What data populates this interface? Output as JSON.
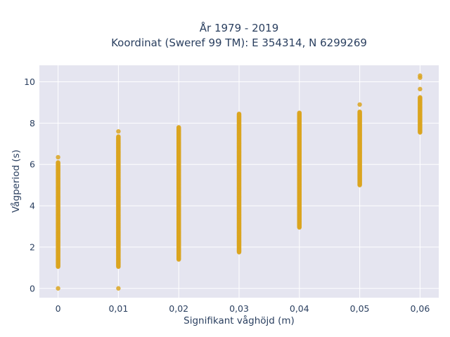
{
  "chart_data": {
    "type": "scatter",
    "title_lines": [
      "År 1979 - 2019",
      "Koordinat (Sweref 99 TM): E 354314, N 6299269"
    ],
    "xlabel": "Signifikant våghöjd (m)",
    "ylabel": "Vågperiod (s)",
    "xlim": [
      -0.0031,
      0.0631
    ],
    "ylim": [
      -0.45,
      10.8
    ],
    "x_ticks": [
      0,
      0.01,
      0.02,
      0.03,
      0.04,
      0.05,
      0.06
    ],
    "x_tick_labels": [
      "0",
      "0,01",
      "0,02",
      "0,03",
      "0,04",
      "0,05",
      "0,06"
    ],
    "y_ticks": [
      0,
      2,
      4,
      6,
      8,
      10
    ],
    "y_tick_labels": [
      "0",
      "2",
      "4",
      "6",
      "8",
      "10"
    ],
    "grid": true,
    "legend": "none",
    "series": [
      {
        "color": "#DAA520",
        "columns": [
          {
            "x": 0,
            "y_min": 1.05,
            "y_max": 6.1,
            "extra": [
              0,
              6.35
            ]
          },
          {
            "x": 0.01,
            "y_min": 1.05,
            "y_max": 7.35,
            "extra": [
              0,
              7.6
            ]
          },
          {
            "x": 0.02,
            "y_min": 1.4,
            "y_max": 7.8,
            "extra": []
          },
          {
            "x": 0.03,
            "y_min": 1.75,
            "y_max": 8.45,
            "extra": []
          },
          {
            "x": 0.04,
            "y_min": 2.95,
            "y_max": 8.5,
            "extra": []
          },
          {
            "x": 0.05,
            "y_min": 5.0,
            "y_max": 8.55,
            "extra": [
              8.9
            ]
          },
          {
            "x": 0.06,
            "y_min": 7.55,
            "y_max": 9.25,
            "extra": [
              9.65,
              10.2,
              10.3
            ]
          }
        ]
      }
    ]
  }
}
